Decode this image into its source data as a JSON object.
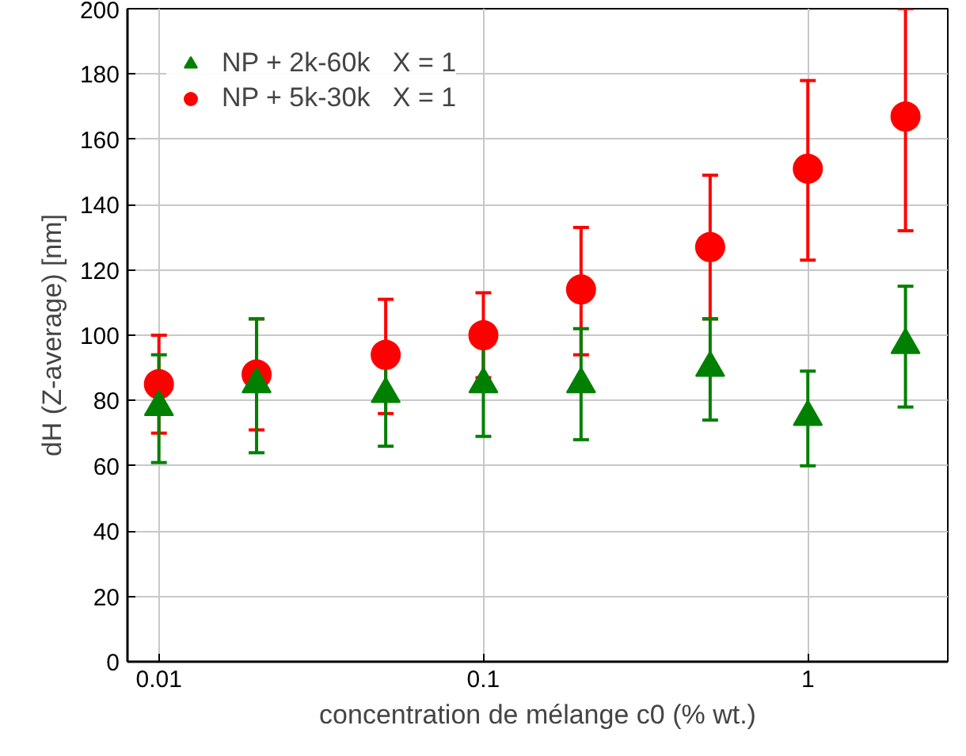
{
  "chart_data": {
    "type": "scatter",
    "xlabel": "concentration de mélange c0 (% wt.)",
    "ylabel": "dH (Z-average) [nm]",
    "x": [
      0.01,
      0.02,
      0.05,
      0.1,
      0.2,
      0.5,
      1,
      2
    ],
    "series": [
      {
        "name": "NP + 2k-60k   X = 1",
        "color": "#008000",
        "marker": "triangle",
        "values": [
          78,
          85,
          82,
          85,
          85,
          90,
          75,
          97
        ],
        "errors": [
          [
            61,
            94
          ],
          [
            64,
            105
          ],
          [
            66,
            97
          ],
          [
            69,
            97
          ],
          [
            68,
            102
          ],
          [
            74,
            105
          ],
          [
            60,
            89
          ],
          [
            78,
            115
          ]
        ]
      },
      {
        "name": "NP + 5k-30k   X = 1",
        "color": "#ff0000",
        "marker": "circle",
        "values": [
          85,
          88,
          94,
          100,
          114,
          127,
          151,
          167
        ],
        "errors": [
          [
            70,
            100
          ],
          [
            71,
            105
          ],
          [
            76,
            111
          ],
          [
            87,
            113
          ],
          [
            94,
            133
          ],
          [
            105,
            149
          ],
          [
            123,
            178
          ],
          [
            132,
            200
          ]
        ]
      }
    ],
    "log": "x",
    "xlim": [
      0.008,
      2.7
    ],
    "ylim": [
      0,
      200
    ],
    "xticks": [
      0.01,
      0.1,
      1
    ],
    "yticks": [
      0,
      20,
      40,
      60,
      80,
      100,
      120,
      140,
      160,
      180,
      200
    ],
    "grid": true,
    "legend": "top left"
  }
}
